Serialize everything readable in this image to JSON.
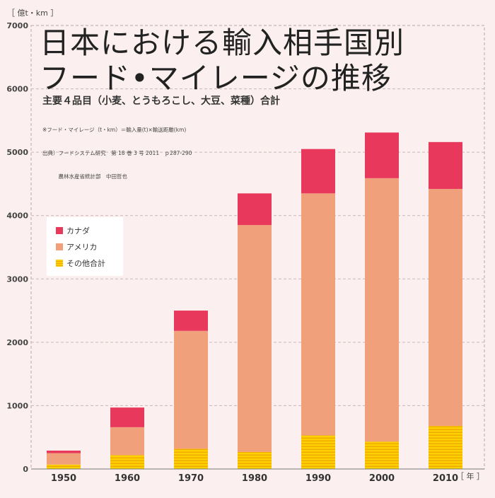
{
  "chart_data": {
    "type": "bar",
    "stacked": true,
    "title_lines": [
      "日本における輸入相手国別",
      "フード•マイレージの推移"
    ],
    "subtitle": "主要４品目（小麦、とうもろこし、大豆、菜種）合計",
    "notes": [
      "※フード・マイレージ（t・km）＝輸入量(t)×輸送距離(km)",
      "出典）フードシステム研究　第 18 巻 3 号 2011　ｐ287-290",
      "　　　農林水産省統計部　中田哲也"
    ],
    "ylabel": "［ 億t・km ］",
    "xlabel": "［ 年 ］",
    "ylim": [
      0,
      7000
    ],
    "yticks": [
      0,
      1000,
      2000,
      3000,
      4000,
      5000,
      6000,
      7000
    ],
    "grid": true,
    "legend_position": "left-middle",
    "categories": [
      "1950",
      "1960",
      "1970",
      "1980",
      "1990",
      "2000",
      "2010"
    ],
    "series": [
      {
        "name": "その他合計",
        "color": "#fbd100",
        "pattern": "horizontal-stripes",
        "values": [
          70,
          220,
          320,
          270,
          530,
          430,
          680
        ]
      },
      {
        "name": "アメリカ",
        "color": "#f0a07a",
        "values": [
          180,
          440,
          1860,
          3580,
          3820,
          4160,
          3740
        ]
      },
      {
        "name": "カナダ",
        "color": "#e8385b",
        "values": [
          40,
          310,
          320,
          500,
          700,
          720,
          740
        ]
      }
    ],
    "legend_order": [
      "カナダ",
      "アメリカ",
      "その他合計"
    ]
  }
}
